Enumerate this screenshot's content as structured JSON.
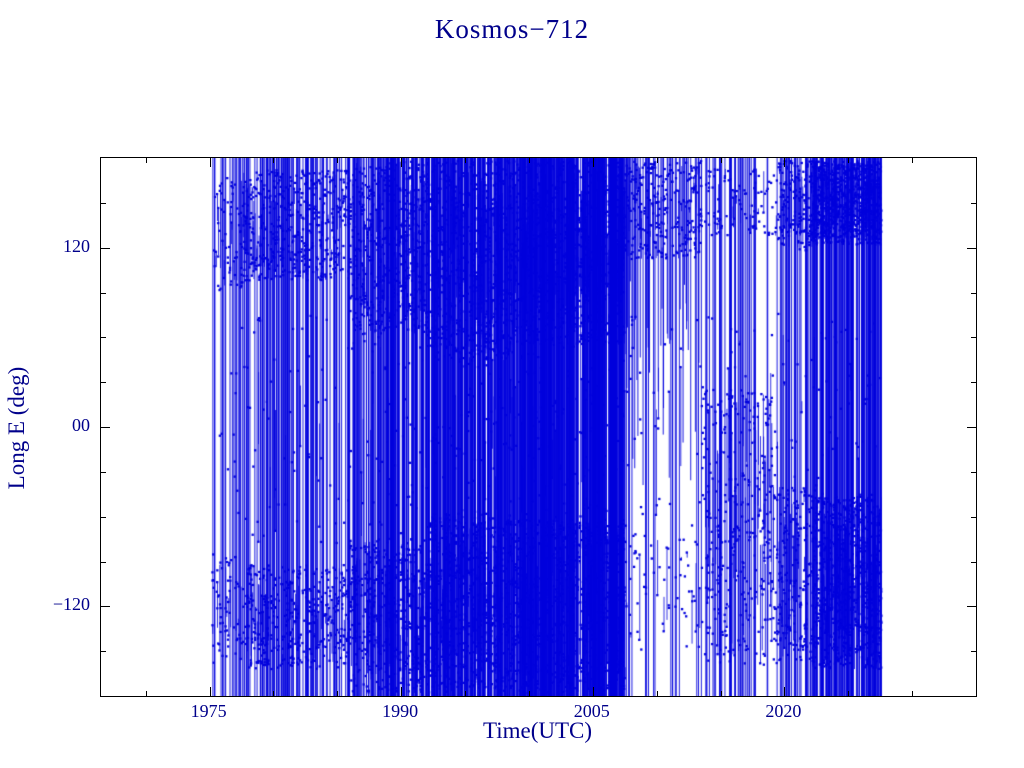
{
  "chart_data": {
    "type": "scatter",
    "title": "Kosmos−712",
    "xlabel": "Time(UTC)",
    "ylabel": "Long E (deg)",
    "xlim": [
      1966.5,
      2035.0
    ],
    "ylim": [
      -180,
      180
    ],
    "grid": false,
    "legend": "none",
    "marker": "small-square",
    "data_color": "#0000dd",
    "axis_color": "#000000",
    "text_color": "#00008b",
    "x_ticks": [
      {
        "value": 1975,
        "label": "1975"
      },
      {
        "value": 1990,
        "label": "1990"
      },
      {
        "value": 2005,
        "label": "2005"
      },
      {
        "value": 2020,
        "label": "2020"
      }
    ],
    "x_minor_step": 5,
    "y_ticks": [
      {
        "value": 120,
        "label": "120"
      },
      {
        "value": 0,
        "label": "00"
      },
      {
        "value": -120,
        "label": "−120"
      }
    ],
    "y_minor_step": 30,
    "series_description": "East longitude of Kosmos-712 versus time: dense blue bands near +90…+180 deg and −45…−180 deg with frequent full-range vertical wrap lines, data spanning ~1975 to ~2027.5",
    "segments": [
      {
        "t0": 1975.2,
        "t1": 1977.6,
        "vlines_per_year": 7,
        "top_band": [
          90,
          168
        ],
        "top_per_year": 26,
        "bot_band": [
          -158,
          -85
        ],
        "bot_per_year": 26,
        "mid_per_year": 5
      },
      {
        "t0": 1977.6,
        "t1": 1986.0,
        "vlines_per_year": 13,
        "top_band": [
          98,
          172
        ],
        "top_per_year": 55,
        "bot_band": [
          -162,
          -92
        ],
        "bot_per_year": 48,
        "mid_per_year": 7
      },
      {
        "t0": 1986.0,
        "t1": 1992.0,
        "vlines_per_year": 22,
        "top_band": [
          62,
          178
        ],
        "top_per_year": 85,
        "bot_band": [
          -178,
          -75
        ],
        "bot_per_year": 75,
        "mid_per_year": 11
      },
      {
        "t0": 1992.0,
        "t1": 1999.0,
        "vlines_per_year": 30,
        "top_band": [
          45,
          178
        ],
        "top_per_year": 110,
        "bot_band": [
          -178,
          -58
        ],
        "bot_per_year": 100,
        "mid_per_year": 15
      },
      {
        "t0": 1999.0,
        "t1": 2007.5,
        "vlines_per_year": 42,
        "top_band": [
          55,
          178
        ],
        "top_per_year": 115,
        "bot_band": [
          -178,
          -62
        ],
        "bot_per_year": 110,
        "mid_per_year": 20
      },
      {
        "t0": 2007.5,
        "t1": 2013.5,
        "vlines_per_year": 3,
        "top_band": [
          112,
          178
        ],
        "top_per_year": 45,
        "bot_band": [
          -150,
          -70
        ],
        "bot_per_year": 10,
        "mid_per_year": 6,
        "top_drops_per_year": 6
      },
      {
        "t0": 2013.5,
        "t1": 2019.5,
        "vlines_per_year": 7,
        "top_band": [
          128,
          178
        ],
        "top_per_year": 15,
        "bot_band": [
          -160,
          25
        ],
        "bot_per_year": 55,
        "mid_per_year": 8
      },
      {
        "t0": 2019.5,
        "t1": 2022.2,
        "vlines_per_year": 12,
        "top_band": [
          118,
          178
        ],
        "top_per_year": 60,
        "bot_band": [
          -158,
          -40
        ],
        "bot_per_year": 65,
        "mid_per_year": 9
      },
      {
        "t0": 2022.2,
        "t1": 2027.6,
        "vlines_per_year": 26,
        "top_band": [
          122,
          178
        ],
        "top_per_year": 150,
        "bot_band": [
          -162,
          -45
        ],
        "bot_per_year": 150,
        "mid_per_year": 9
      }
    ]
  }
}
